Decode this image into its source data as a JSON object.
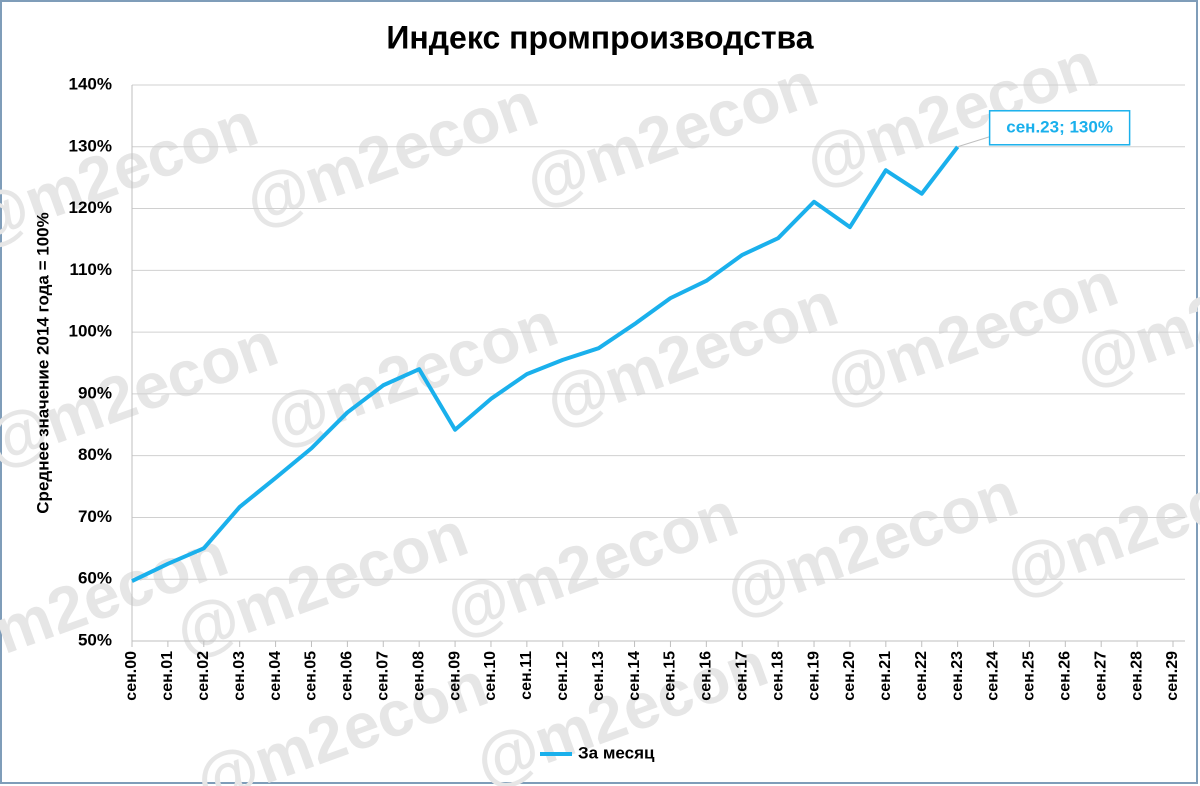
{
  "chart_data": {
    "type": "line",
    "title": "Индекс промпроизводства",
    "y_label": "Среднее значение 2014 года = 100%",
    "watermark": "@m2econ",
    "categories": [
      "сен.00",
      "сен.01",
      "сен.02",
      "сен.03",
      "сен.04",
      "сен.05",
      "сен.06",
      "сен.07",
      "сен.08",
      "сен.09",
      "сен.10",
      "сен.11",
      "сен.12",
      "сен.13",
      "сен.14",
      "сен.15",
      "сен.16",
      "сен.17",
      "сен.18",
      "сен.19",
      "сен.20",
      "сен.21",
      "сен.22",
      "сен.23",
      "сен.24",
      "сен.25",
      "сен.26",
      "сен.27",
      "сен.28",
      "сен.29"
    ],
    "series": [
      {
        "name": "За месяц",
        "color": "#1ab0ec",
        "values": [
          59.7,
          62.5,
          65,
          71.7,
          76.4,
          81.2,
          87,
          91.4,
          94,
          84.2,
          89.2,
          93.2,
          95.5,
          97.4,
          101.3,
          105.5,
          108.3,
          112.5,
          115.2,
          121.1,
          117,
          126.2,
          122.4,
          130,
          null,
          null,
          null,
          null,
          null,
          null
        ],
        "value_labels": [
          null,
          null,
          null,
          null,
          null,
          null,
          null,
          null,
          null,
          null,
          null,
          null,
          null,
          null,
          null,
          null,
          null,
          null,
          null,
          null,
          null,
          null,
          null,
          "сен.23; 130%",
          null,
          null,
          null,
          null,
          null,
          null
        ]
      }
    ],
    "ylim": [
      50,
      140
    ],
    "yticks": [
      {
        "value": 50,
        "label": "50%"
      },
      {
        "value": 60,
        "label": "60%"
      },
      {
        "value": 70,
        "label": "70%"
      },
      {
        "value": 80,
        "label": "80%"
      },
      {
        "value": 90,
        "label": "90%"
      },
      {
        "value": 100,
        "label": "100%"
      },
      {
        "value": 110,
        "label": "110%"
      },
      {
        "value": 120,
        "label": "120%"
      },
      {
        "value": 130,
        "label": "130%"
      },
      {
        "value": 140,
        "label": "140%"
      }
    ],
    "grid": true,
    "legend": "bottom"
  }
}
